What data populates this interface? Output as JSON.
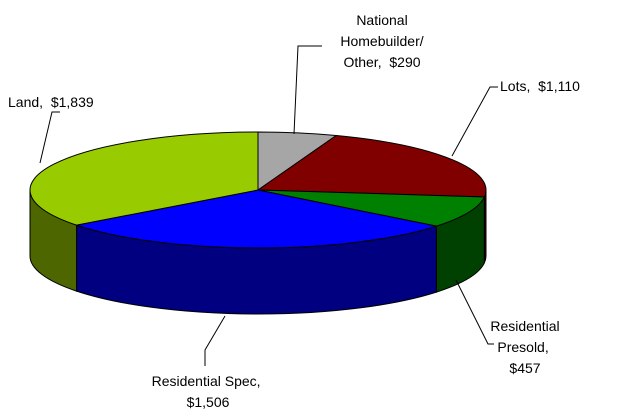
{
  "chart_data": {
    "type": "pie3d",
    "categories": [
      "National Homebuilder/ Other,",
      "Lots,",
      "Residential Presold,",
      "Residential Spec,",
      "Land,"
    ],
    "values": [
      290,
      1110,
      457,
      1506,
      1839
    ],
    "value_labels": [
      "$290",
      "$1,110",
      "$457",
      "$1,506",
      "$1,839"
    ],
    "colors": [
      "#a6a6a6",
      "#800000",
      "#008000",
      "#0000ff",
      "#99cc00"
    ]
  }
}
